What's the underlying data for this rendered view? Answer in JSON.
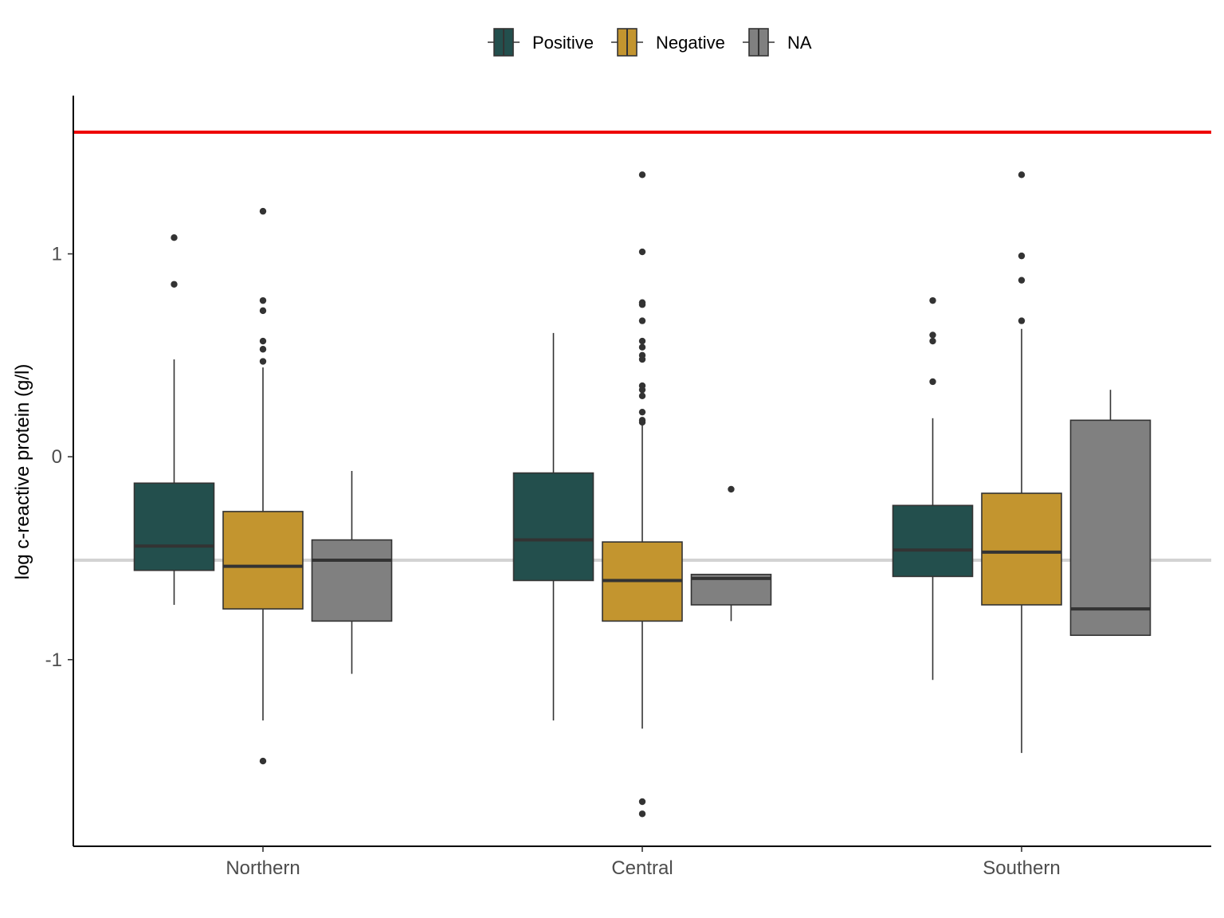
{
  "chart_data": {
    "type": "boxplot",
    "title": "",
    "xlabel": "",
    "ylabel": "log c-reactive protein (g/l)",
    "categories": [
      "Northern",
      "Central",
      "Southern"
    ],
    "groups": [
      "Positive",
      "Negative",
      "NA"
    ],
    "colors": {
      "Positive": "#234f4d",
      "Negative": "#c3952f",
      "NA": "#808080"
    },
    "legend_position": "top",
    "y_ticks": [
      {
        "value": 1,
        "label": "1"
      },
      {
        "value": 0,
        "label": "0"
      },
      {
        "value": -1,
        "label": "-1"
      }
    ],
    "ylim": [
      -1.92,
      1.78
    ],
    "grid": false,
    "reference_lines": [
      {
        "value": 1.6,
        "color": "#ee0000"
      },
      {
        "value": -0.51,
        "color": "#d3d3d3"
      }
    ],
    "boxes": [
      {
        "category": "Northern",
        "group": "Positive",
        "whisker_low": -0.73,
        "q1": -0.56,
        "median": -0.44,
        "q3": -0.13,
        "whisker_high": 0.48,
        "outliers": [
          1.08,
          0.85
        ]
      },
      {
        "category": "Northern",
        "group": "Negative",
        "whisker_low": -1.3,
        "q1": -0.75,
        "median": -0.54,
        "q3": -0.27,
        "whisker_high": 0.44,
        "outliers": [
          1.21,
          0.77,
          0.72,
          0.57,
          0.53,
          0.47,
          -1.5
        ]
      },
      {
        "category": "Northern",
        "group": "NA",
        "whisker_low": -1.07,
        "q1": -0.81,
        "median": -0.51,
        "q3": -0.41,
        "whisker_high": -0.07,
        "outliers": []
      },
      {
        "category": "Central",
        "group": "Positive",
        "whisker_low": -1.3,
        "q1": -0.61,
        "median": -0.41,
        "q3": -0.08,
        "whisker_high": 0.61,
        "outliers": []
      },
      {
        "category": "Central",
        "group": "Negative",
        "whisker_low": -1.34,
        "q1": -0.81,
        "median": -0.61,
        "q3": -0.42,
        "whisker_high": 0.17,
        "outliers": [
          1.39,
          1.01,
          0.76,
          0.75,
          0.67,
          0.57,
          0.54,
          0.5,
          0.48,
          0.35,
          0.33,
          0.3,
          0.22,
          0.18,
          0.17,
          -1.7,
          -1.76
        ]
      },
      {
        "category": "Central",
        "group": "NA",
        "whisker_low": -0.81,
        "q1": -0.73,
        "median": -0.6,
        "q3": -0.58,
        "whisker_high": -0.58,
        "outliers": [
          -0.16
        ]
      },
      {
        "category": "Southern",
        "group": "Positive",
        "whisker_low": -1.1,
        "q1": -0.59,
        "median": -0.46,
        "q3": -0.24,
        "whisker_high": 0.19,
        "outliers": [
          0.77,
          0.6,
          0.57,
          0.37
        ]
      },
      {
        "category": "Southern",
        "group": "Negative",
        "whisker_low": -1.46,
        "q1": -0.73,
        "median": -0.47,
        "q3": -0.18,
        "whisker_high": 0.63,
        "outliers": [
          1.39,
          0.99,
          0.87,
          0.67
        ]
      },
      {
        "category": "Southern",
        "group": "NA",
        "whisker_low": -0.88,
        "q1": -0.88,
        "median": -0.75,
        "q3": 0.18,
        "whisker_high": 0.33,
        "outliers": []
      }
    ]
  }
}
